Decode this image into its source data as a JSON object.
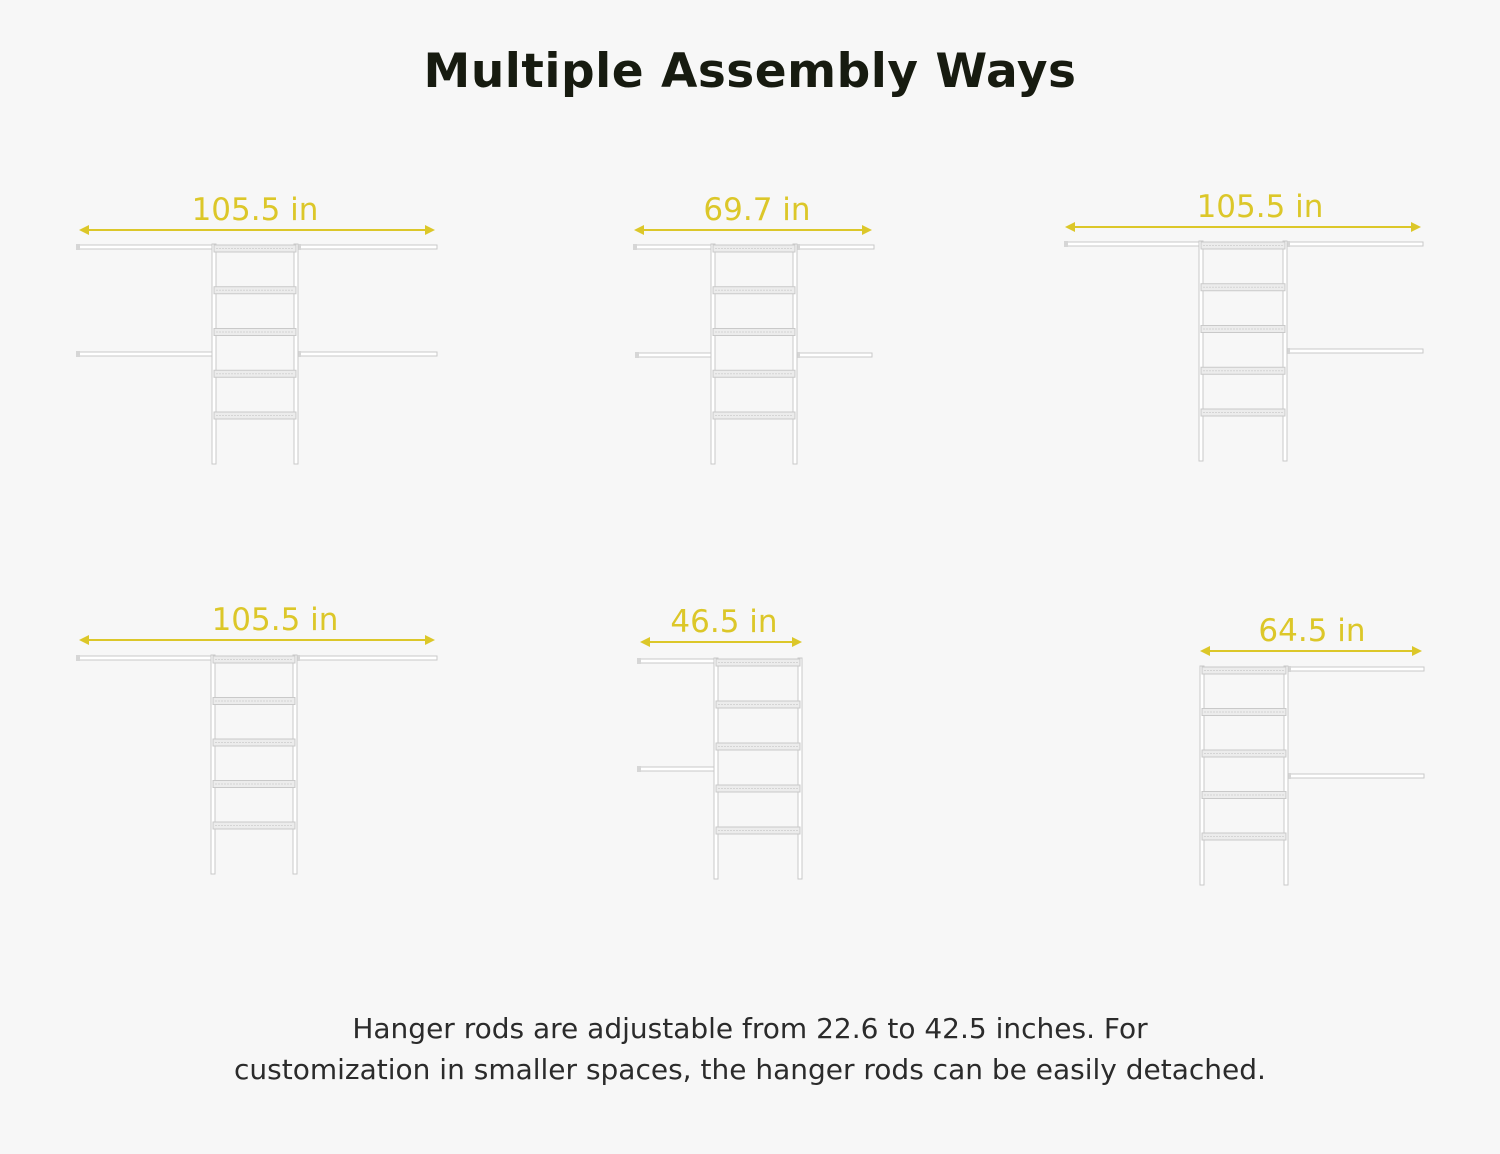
{
  "title": "Multiple Assembly Ways",
  "configurations": [
    {
      "width_label": "105.5 in",
      "layout": "rods-both-sides",
      "upper_rods": "both",
      "lower_rods": "both"
    },
    {
      "width_label": "69.7 in",
      "layout": "short-rods-both-sides",
      "upper_rods": "both",
      "lower_rods": "both"
    },
    {
      "width_label": "105.5 in",
      "layout": "rods-both-sides-lower-right-only",
      "upper_rods": "both",
      "lower_rods": "right"
    },
    {
      "width_label": "105.5 in",
      "layout": "top-rods-only",
      "upper_rods": "both",
      "lower_rods": "none"
    },
    {
      "width_label": "46.5 in",
      "layout": "left-rods-only",
      "upper_rods": "left",
      "lower_rods": "left"
    },
    {
      "width_label": "64.5 in",
      "layout": "right-rods-only",
      "upper_rods": "right",
      "lower_rods": "right"
    }
  ],
  "caption": {
    "line1": "Hanger rods are adjustable from 22.6 to 42.5 inches. For",
    "line2": "customization in smaller spaces, the hanger rods can be easily detached."
  },
  "colors": {
    "background": "#f7f7f7",
    "title": "#171b10",
    "dimension": "#dcc729",
    "frame": "#c9c9c9",
    "caption": "#2b2b2b"
  }
}
